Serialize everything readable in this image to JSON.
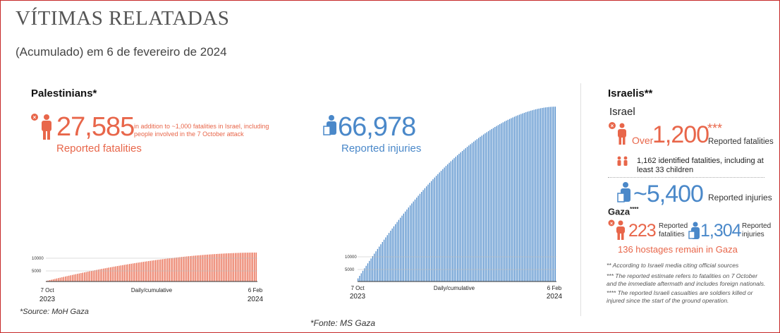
{
  "header": {
    "title": "VÍTIMAS RELATADAS",
    "subtitle": "(Acumulado) em 6 de fevereiro de 2024"
  },
  "palestinians": {
    "heading": "Palestinians*",
    "fatalities_number": "27,585",
    "fatalities_note": "in addition to ~1,000 fatalities in Israel, including people involved in the 7 October attack",
    "fatalities_label": "Reported fatalities",
    "injuries_number": "66,978",
    "injuries_label": "Reported injuries",
    "source": "*Source: MoH Gaza"
  },
  "israelis": {
    "heading": "Israelis**",
    "israel_label": "Israel",
    "over_word": "Over",
    "fatalities_number": "1,200",
    "fatalities_stars": "***",
    "fatalities_label": "Reported fatalities",
    "identified_note": "1,162 identified fatalities, including at least 33 children",
    "injuries_number": "~5,400",
    "injuries_label": "Reported injuries",
    "gaza_label": "Gaza",
    "gaza_stars": "****",
    "gaza_fatalities_number": "223",
    "gaza_fatalities_label": "Reported fatalities",
    "gaza_injuries_number": "1,304",
    "gaza_injuries_label": "Reported injuries",
    "hostages_note": "136 hostages remain in Gaza",
    "footnote_1": "** According to Israeli media citing official sources",
    "footnote_2": "*** The reported estimate refers to fatalities on 7 October and the immediate aftermath and includes foreign nationals.",
    "footnote_3": "**** The reported Israeli casualties are soldiers killed or injured since the start of the ground operation."
  },
  "footer": {
    "source": "*Fonte: MS Gaza"
  },
  "colors": {
    "fatalities": "#e8664a",
    "injuries": "#4a88c9",
    "border": "#c62828"
  },
  "chart_data": [
    {
      "type": "bar",
      "series": [
        {
          "name": "Reported fatalities",
          "start": 500,
          "end": 27585,
          "points": 122
        }
      ],
      "xlabel": "Daily/cumulative",
      "x_start": "7 Oct",
      "x_start_year": "2023",
      "x_end": "6 Feb",
      "x_end_year": "2024",
      "yticks": [
        5000,
        10000
      ],
      "ylim": [
        0,
        80000
      ]
    },
    {
      "type": "bar",
      "series": [
        {
          "name": "Reported injuries",
          "start": 1200,
          "end": 66978,
          "points": 122
        }
      ],
      "xlabel": "Daily/cumulative",
      "x_start": "7 Oct",
      "x_start_year": "2023",
      "x_end": "6 Feb",
      "x_end_year": "2024",
      "yticks": [
        5000,
        10000
      ],
      "ylim": [
        0,
        70000
      ]
    }
  ]
}
